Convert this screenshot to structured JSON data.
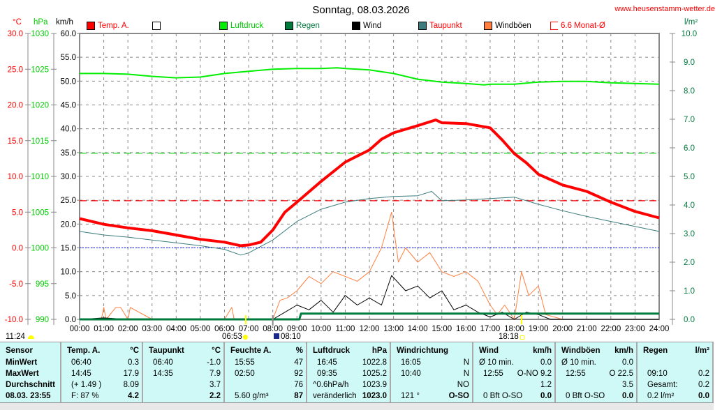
{
  "title": "Sonntag, 08.03.2026",
  "site": "www.heusenstamm-wetter.de",
  "legend": [
    {
      "label": "Temp. A.",
      "color": "#ff0000",
      "text_color": "#ff0000"
    },
    {
      "label": "",
      "color": "#ffffff",
      "text_color": "#000000"
    },
    {
      "label": "Luftdruck",
      "color": "#00ee00",
      "text_color": "#00cc00"
    },
    {
      "label": "Regen",
      "color": "#007a3d",
      "text_color": "#007a3d"
    },
    {
      "label": "Wind",
      "color": "#000000",
      "text_color": "#000000"
    },
    {
      "label": "Taupunkt",
      "color": "#3c7c7c",
      "text_color": "#ff0000"
    },
    {
      "label": "Windböen",
      "color": "#ff8040",
      "text_color": "#000000"
    },
    {
      "label": "6.6 Monat-Ø",
      "color": "#ffffff",
      "text_color": "#ff0000"
    }
  ],
  "axis_units": {
    "temp": "°C",
    "pressure": "hPa",
    "wind": "km/h",
    "rain": "l/m²"
  },
  "markers": {
    "sunrise": "06:53",
    "sunset": "18:18",
    "rain_start": "08:10",
    "moon": "11:24"
  },
  "chart_data": {
    "type": "line",
    "title": "Sonntag, 08.03.2026",
    "x_ticks": [
      "00:00",
      "01:00",
      "02:00",
      "03:00",
      "04:00",
      "05:00",
      "06:00",
      "07:00",
      "08:00",
      "09:00",
      "10:00",
      "11:00",
      "12:00",
      "13:00",
      "14:00",
      "15:00",
      "16:00",
      "17:00",
      "18:00",
      "19:00",
      "20:00",
      "21:00",
      "22:00",
      "23:00",
      "24:00"
    ],
    "xlim_hours": [
      0,
      24
    ],
    "temp_ticks": [
      "30.0",
      "25.0",
      "20.0",
      "15.0",
      "10.0",
      "5.0",
      "0.0",
      "-5.0",
      "-10.0"
    ],
    "temp_range": [
      -10,
      30
    ],
    "pressure_ticks": [
      "1030",
      "1025",
      "1020",
      "1015",
      "1010",
      "1005",
      "1000",
      "995",
      "990"
    ],
    "pressure_range": [
      990,
      1030
    ],
    "wind_ticks": [
      "60.0",
      "55.0",
      "50.0",
      "45.0",
      "40.0",
      "35.0",
      "30.0",
      "25.0",
      "20.0",
      "15.0",
      "10.0",
      "5.0",
      "0.0"
    ],
    "wind_range": [
      0,
      60
    ],
    "rain_ticks": [
      "10.0",
      "9.0",
      "8.0",
      "7.0",
      "6.0",
      "5.0",
      "4.0",
      "3.0",
      "2.0",
      "1.0",
      "0.0"
    ],
    "rain_range": [
      0,
      10
    ],
    "reference_lines": {
      "temp_month_avg": 6.6,
      "pressure_standard": 1013.25,
      "temp_zero": 0
    },
    "series": [
      {
        "name": "Temp. A.",
        "axis": "temp",
        "x": [
          0,
          1,
          2,
          3,
          4,
          5,
          6,
          6.67,
          7,
          7.5,
          8,
          8.5,
          9,
          10,
          11,
          12,
          12.5,
          13,
          14,
          14.75,
          15,
          16,
          17,
          17.5,
          18,
          18.5,
          19,
          20,
          21,
          22,
          23,
          24
        ],
        "values": [
          4.1,
          3.3,
          2.8,
          2.4,
          1.8,
          1.2,
          0.8,
          0.3,
          0.4,
          0.8,
          2.5,
          5.0,
          6.4,
          9.3,
          12.0,
          13.7,
          15.2,
          16.1,
          17.1,
          17.9,
          17.5,
          17.4,
          16.8,
          15.1,
          13.2,
          11.9,
          10.3,
          8.8,
          7.9,
          6.4,
          5.1,
          4.2
        ]
      },
      {
        "name": "Taupunkt",
        "axis": "temp",
        "x": [
          0,
          1,
          2,
          3,
          4,
          5,
          6,
          6.67,
          7,
          8,
          9,
          10,
          11,
          12,
          13,
          14,
          14.58,
          15,
          16,
          17,
          18,
          19,
          20,
          21,
          22,
          23,
          24
        ],
        "values": [
          2.3,
          1.8,
          1.5,
          1.1,
          0.7,
          0.3,
          -0.2,
          -1.0,
          -0.7,
          1.1,
          3.7,
          5.4,
          6.4,
          6.9,
          7.2,
          7.3,
          7.9,
          6.6,
          6.7,
          6.9,
          7.1,
          6.1,
          5.2,
          4.4,
          3.7,
          3.0,
          2.3
        ]
      },
      {
        "name": "Luftdruck",
        "axis": "pressure",
        "x": [
          0,
          1,
          2,
          3,
          4,
          5,
          6,
          7,
          8,
          9,
          10,
          10.67,
          11,
          12,
          13,
          14,
          15,
          16,
          16.75,
          17,
          18,
          19,
          20,
          21,
          22,
          23,
          24
        ],
        "values": [
          1024.4,
          1024.4,
          1024.3,
          1024.0,
          1023.8,
          1023.9,
          1024.4,
          1024.7,
          1025.0,
          1025.1,
          1025.1,
          1025.2,
          1025.1,
          1024.9,
          1024.4,
          1023.6,
          1023.2,
          1023.0,
          1022.8,
          1022.9,
          1022.9,
          1023.2,
          1023.3,
          1023.3,
          1023.1,
          1023.0,
          1022.9
        ]
      },
      {
        "name": "Wind",
        "axis": "wind",
        "x": [
          0,
          1,
          2,
          3,
          4,
          5,
          6,
          7,
          8,
          8.5,
          9,
          9.5,
          10,
          10.5,
          11,
          11.5,
          12,
          12.5,
          12.92,
          13.5,
          14,
          14.5,
          15,
          15.5,
          16,
          16.5,
          17,
          17.5,
          18,
          18.5,
          19,
          19.5,
          20,
          24
        ],
        "values": [
          0,
          0.3,
          0,
          0,
          0,
          0,
          0,
          0,
          0,
          1.5,
          3,
          2,
          4,
          1.5,
          5,
          3,
          4.5,
          3,
          9.2,
          6,
          7,
          4.5,
          6,
          2,
          3,
          1.5,
          0.5,
          1.5,
          0,
          1.5,
          1,
          0,
          0,
          0
        ]
      },
      {
        "name": "Windböen",
        "axis": "wind",
        "x": [
          0,
          0.9,
          1.0,
          1.1,
          1.5,
          1.7,
          2.0,
          2.1,
          3,
          6,
          6.3,
          6.4,
          7,
          8,
          8.3,
          8.6,
          9,
          9.5,
          10,
          10.5,
          11,
          11.5,
          12,
          12.5,
          12.92,
          13.2,
          13.5,
          14,
          14.5,
          15,
          15.5,
          16,
          16.5,
          17,
          17.3,
          17.6,
          18,
          18.3,
          18.6,
          19,
          19.3,
          20,
          24
        ],
        "values": [
          0,
          0,
          2.5,
          0,
          2.5,
          2.5,
          0,
          2.5,
          0,
          0,
          2.5,
          0,
          0,
          0,
          4,
          4.5,
          6,
          9,
          7.5,
          10,
          9,
          8,
          10,
          15,
          22.5,
          12,
          15,
          12,
          14,
          10,
          9,
          10,
          8,
          3,
          1,
          3,
          0,
          10,
          5,
          7,
          1,
          0,
          0
        ]
      },
      {
        "name": "Regen",
        "axis": "rain",
        "x": [
          0,
          9.1,
          9.17,
          24
        ],
        "values": [
          0,
          0,
          0.2,
          0.2
        ]
      }
    ]
  },
  "table": {
    "headers": {
      "sensor": "Sensor",
      "temp": "Temp. A.",
      "temp_u": "°C",
      "dew": "Taupunkt",
      "dew_u": "°C",
      "hum": "Feuchte A.",
      "hum_u": "%",
      "pres": "Luftdruck",
      "pres_u": "hPa",
      "wdir": "Windrichtung",
      "wind": "Wind",
      "wind_u": "km/h",
      "gust": "Windböen",
      "gust_u": "km/h",
      "rain": "Regen",
      "rain_u": "l/m²"
    },
    "row_labels": [
      "MinWert",
      "MaxWert",
      "Durchschnitt",
      "08.03. 23:55"
    ],
    "temp": [
      [
        "06:40",
        "0.3"
      ],
      [
        "14:45",
        "17.9"
      ],
      [
        "(+ 1.49 )",
        "8.09"
      ],
      [
        "F: 87 %",
        "4.2"
      ]
    ],
    "dew": [
      [
        "06:40",
        "-1.0"
      ],
      [
        "14:35",
        "7.9"
      ],
      [
        "",
        "3.7"
      ],
      [
        "",
        "2.2"
      ]
    ],
    "hum": [
      [
        "15:55",
        "47"
      ],
      [
        "02:50",
        "92"
      ],
      [
        "",
        "76"
      ],
      [
        "5.60 g/m³",
        "87"
      ]
    ],
    "pres": [
      [
        "16:45",
        "1022.8"
      ],
      [
        "09:35",
        "1025.2"
      ],
      [
        "^0.6hPa/h",
        "1023.9"
      ],
      [
        "veränderlich",
        "1023.0"
      ]
    ],
    "wdir": [
      [
        "16:05",
        "N"
      ],
      [
        "10:40",
        "N"
      ],
      [
        "",
        "NO"
      ],
      [
        "121 °",
        "O-SO"
      ]
    ],
    "wind": [
      [
        "Ø 10 min.",
        "0.0"
      ],
      [
        "12:55",
        "O-NO 9.2"
      ],
      [
        "",
        "1.2"
      ],
      [
        "0 Bft O-SO",
        "0.0"
      ]
    ],
    "gust": [
      [
        "Ø 10 min.",
        "0.0"
      ],
      [
        "12:55",
        "O 22.5"
      ],
      [
        "",
        "3.5"
      ],
      [
        "0 Bft O-SO",
        "0.0"
      ]
    ],
    "rain": [
      [
        "",
        ""
      ],
      [
        "09:10",
        "0.2"
      ],
      [
        "Gesamt:",
        "0.2"
      ],
      [
        "0.2 l/m²",
        "0.0"
      ]
    ]
  }
}
